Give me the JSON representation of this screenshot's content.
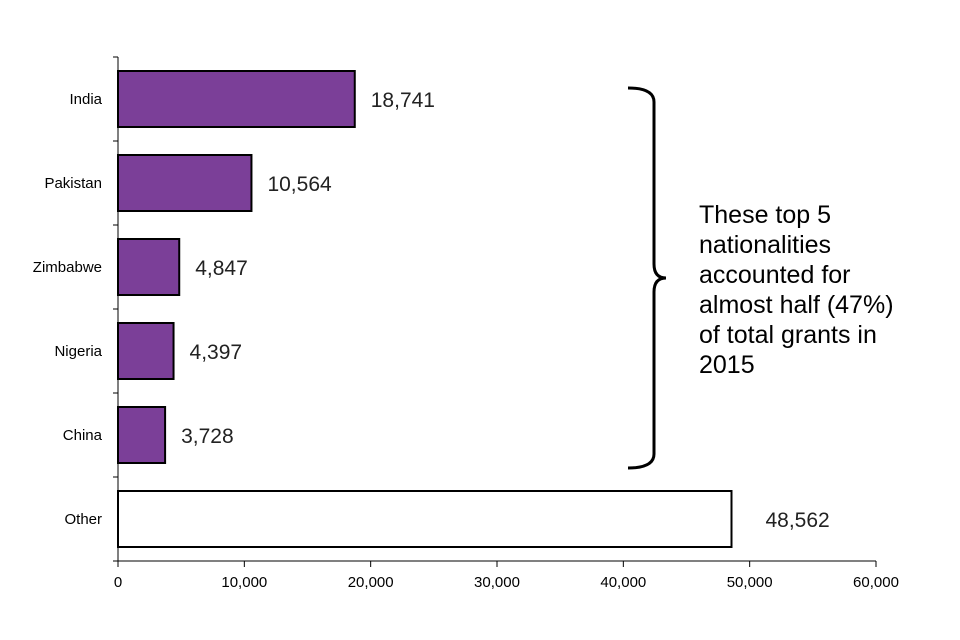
{
  "chart_data": {
    "type": "bar",
    "orientation": "horizontal",
    "categories": [
      "India",
      "Pakistan",
      "Zimbabwe",
      "Nigeria",
      "China",
      "Other"
    ],
    "values": [
      18741,
      10564,
      4847,
      4397,
      3728,
      48562
    ],
    "data_labels": [
      "18,741",
      "10,564",
      "4,847",
      "4,397",
      "3,728",
      "48,562"
    ],
    "xlim": [
      0,
      60000
    ],
    "xticks": [
      0,
      10000,
      20000,
      30000,
      40000,
      50000,
      60000
    ],
    "xtick_labels": [
      "0",
      "10,000",
      "20,000",
      "30,000",
      "40,000",
      "50,000",
      "60,000"
    ],
    "title": "",
    "xlabel": "",
    "ylabel": "",
    "grid": false,
    "annotation": "These top 5 nationalities accounted for almost half (47%) of total grants in 2015"
  },
  "colors": {
    "highlight_bar": "#7B3F98",
    "other_bar": "#FFFFFF",
    "outline": "#000000"
  }
}
